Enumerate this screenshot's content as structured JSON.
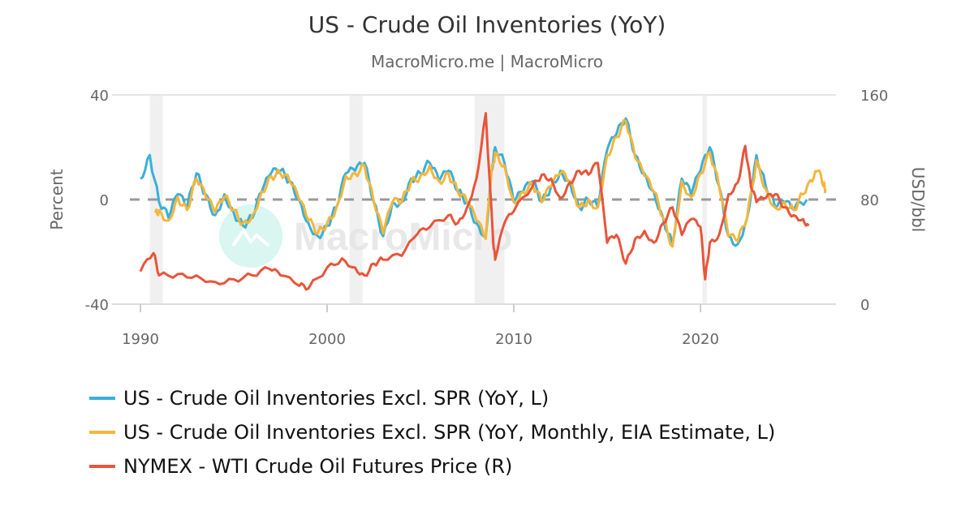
{
  "chart_data": {
    "type": "line",
    "title": "US - Crude Oil Inventories (YoY)",
    "subtitle": "MacroMicro.me | MacroMicro",
    "watermark": "MacroMicro",
    "x_ticks": [
      "1990",
      "2000",
      "2010",
      "2020"
    ],
    "xlim": [
      1990,
      2027
    ],
    "y_left": {
      "label": "Percent",
      "range": [
        -40,
        40
      ],
      "ticks": [
        "40",
        "0",
        "-40"
      ]
    },
    "y_right": {
      "label": "USD/bbl",
      "range": [
        0,
        160
      ],
      "ticks": [
        "160",
        "80",
        "0"
      ]
    },
    "reference_line": {
      "axis": "left",
      "value": 0,
      "style": "dashed"
    },
    "shaded_periods": [
      [
        1990.5,
        1991.2
      ],
      [
        2001.2,
        2001.9
      ],
      [
        2007.9,
        2009.5
      ],
      [
        2020.1,
        2020.35
      ]
    ],
    "legend_position": "bottom",
    "series": [
      {
        "name": "US - Crude Oil Inventories Excl. SPR (YoY, L)",
        "axis": "left",
        "color": "#3aafda",
        "x": [
          1990,
          1990.5,
          1991,
          1991.5,
          1992,
          1992.5,
          1993,
          1993.5,
          1994,
          1994.5,
          1995,
          1995.5,
          1996,
          1996.5,
          1997,
          1997.5,
          1998,
          1998.5,
          1999,
          1999.5,
          2000,
          2000.5,
          2001,
          2001.5,
          2002,
          2002.5,
          2003,
          2003.5,
          2004,
          2004.5,
          2005,
          2005.5,
          2006,
          2006.5,
          2007,
          2007.5,
          2008,
          2008.5,
          2008.8,
          2009,
          2009.5,
          2010,
          2010.5,
          2011,
          2011.5,
          2012,
          2012.5,
          2013,
          2013.5,
          2014,
          2014.5,
          2015,
          2015.5,
          2016,
          2016.5,
          2017,
          2017.5,
          2018,
          2018.5,
          2019,
          2019.5,
          2020,
          2020.5,
          2021,
          2021.5,
          2022,
          2022.5,
          2023,
          2023.5,
          2024,
          2024.5,
          2025,
          2025.7
        ],
        "y": [
          8,
          17,
          -1,
          -7,
          2,
          -3,
          10,
          2,
          -6,
          2,
          -5,
          -10,
          -7,
          3,
          10,
          11,
          7,
          0,
          -9,
          -14,
          -10,
          -3,
          10,
          11,
          14,
          -1,
          -14,
          -1,
          -1,
          8,
          10,
          14,
          7,
          11,
          3,
          -1,
          -9,
          -14,
          11,
          20,
          14,
          -1,
          3,
          7,
          -1,
          5,
          11,
          7,
          -3,
          0,
          -3,
          19,
          25,
          31,
          17,
          10,
          3,
          -7,
          -17,
          8,
          2,
          11,
          20,
          5,
          -14,
          -17,
          -7,
          17,
          5,
          -3,
          -1,
          -4,
          0
        ]
      },
      {
        "name": "US - Crude Oil Inventories Excl. SPR (YoY, Monthly, EIA Estimate, L)",
        "axis": "left",
        "color": "#f5b63a",
        "x": [
          1990.8,
          1991,
          1991.5,
          1992,
          1992.5,
          1993,
          1993.5,
          1994,
          1994.5,
          1995,
          1995.5,
          1996,
          1996.5,
          1997,
          1997.5,
          1998,
          1998.5,
          1999,
          1999.5,
          2000,
          2000.5,
          2001,
          2001.5,
          2002,
          2002.5,
          2003,
          2003.5,
          2004,
          2004.5,
          2005,
          2005.5,
          2006,
          2006.5,
          2007,
          2007.5,
          2008,
          2008.5,
          2008.8,
          2009,
          2009.5,
          2010,
          2010.5,
          2011,
          2011.5,
          2012,
          2012.5,
          2013,
          2013.5,
          2014,
          2014.5,
          2015,
          2015.5,
          2016,
          2016.5,
          2017,
          2017.5,
          2018,
          2018.5,
          2019,
          2019.5,
          2020,
          2020.5,
          2021,
          2021.5,
          2022,
          2022.5,
          2023,
          2023.5,
          2024,
          2024.5,
          2025,
          2025.5,
          2026,
          2026.3,
          2026.6,
          2026.7
        ],
        "y": [
          -5,
          -4,
          -8,
          1,
          -4,
          8,
          1,
          -5,
          1,
          -4,
          -9,
          -6,
          3,
          9,
          10,
          7,
          0,
          -8,
          -13,
          -9,
          -3,
          9,
          10,
          13,
          -1,
          -13,
          -1,
          -1,
          7,
          9,
          13,
          7,
          10,
          3,
          -1,
          -8,
          -15,
          10,
          18,
          13,
          -1,
          3,
          6,
          -1,
          5,
          10,
          7,
          -3,
          0,
          -3,
          17,
          24,
          30,
          16,
          9,
          3,
          -7,
          -18,
          7,
          1,
          10,
          18,
          5,
          -14,
          -16,
          -7,
          15,
          4,
          -3,
          -1,
          -4,
          2,
          7,
          11,
          5,
          4
        ]
      },
      {
        "name": "NYMEX - WTI Crude Oil Futures Price (R)",
        "axis": "right",
        "color": "#e8553a",
        "x": [
          1990,
          1990.7,
          1991,
          1992,
          1993,
          1994,
          1995,
          1996,
          1996.9,
          1997.5,
          1998.5,
          1999,
          2000,
          2000.8,
          2001.5,
          2002,
          2002.5,
          2003,
          2004,
          2004.8,
          2005.5,
          2006.5,
          2007,
          2007.5,
          2008,
          2008.5,
          2008.9,
          2009,
          2009.5,
          2010,
          2011,
          2011.5,
          2012,
          2012.5,
          2013,
          2013.5,
          2014,
          2014.5,
          2015,
          2015.5,
          2016,
          2016.5,
          2017,
          2017.5,
          2018,
          2018.5,
          2019,
          2019.5,
          2020,
          2020.25,
          2020.5,
          2021,
          2021.5,
          2022,
          2022.4,
          2022.7,
          2023,
          2023.5,
          2024,
          2024.5,
          2025,
          2025.5,
          2025.8
        ],
        "y": [
          25,
          39,
          22,
          23,
          22,
          17,
          19,
          22,
          27,
          22,
          14,
          12,
          28,
          35,
          28,
          22,
          31,
          34,
          37,
          53,
          59,
          68,
          62,
          74,
          96,
          146,
          47,
          34,
          62,
          71,
          90,
          99,
          96,
          81,
          93,
          102,
          99,
          108,
          47,
          53,
          31,
          50,
          56,
          47,
          62,
          74,
          53,
          65,
          59,
          19,
          47,
          53,
          84,
          93,
          121,
          90,
          78,
          81,
          84,
          74,
          68,
          65,
          60
        ]
      }
    ]
  }
}
